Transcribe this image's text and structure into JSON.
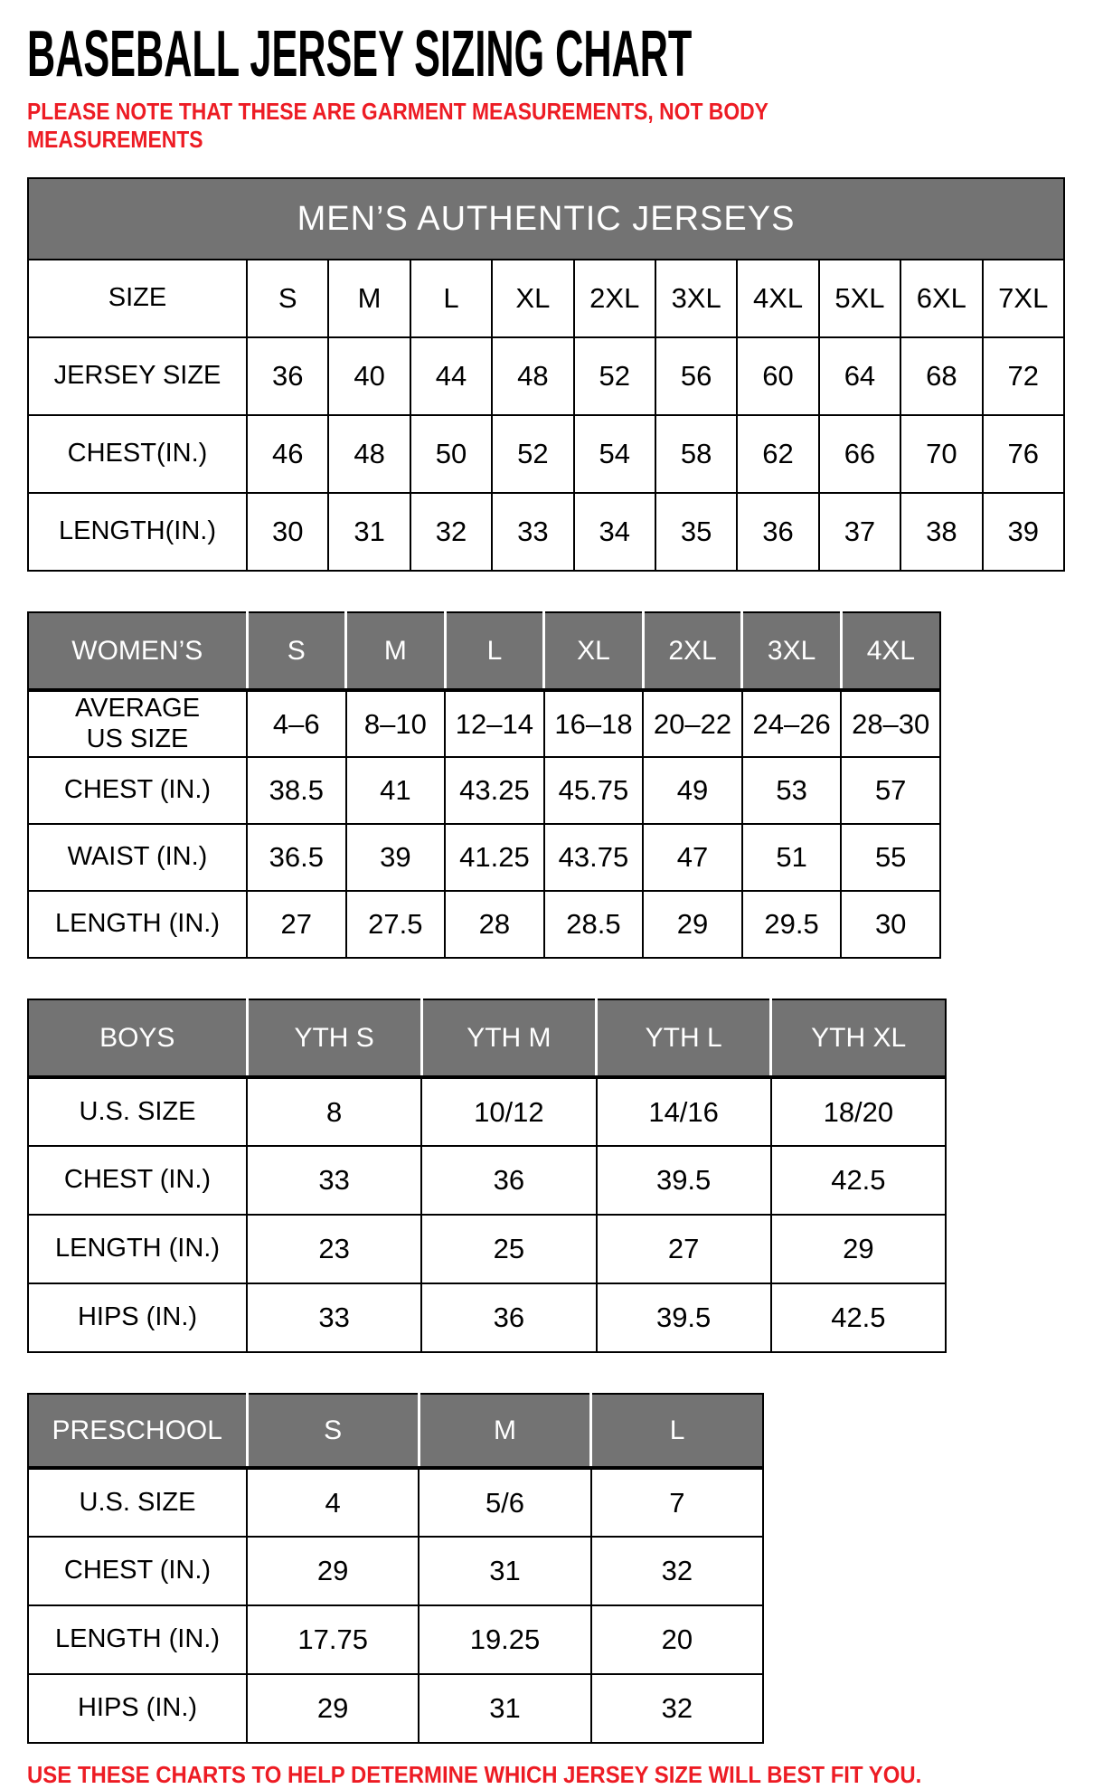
{
  "title": "BASEBALL JERSEY SIZING CHART",
  "note_lines": [
    "PLEASE NOTE THAT THESE ARE GARMENT MEASUREMENTS, NOT BODY",
    "MEASUREMENTS"
  ],
  "footer": "USE THESE CHARTS TO HELP DETERMINE WHICH JERSEY SIZE WILL BEST FIT YOU.",
  "colors": {
    "note_red": "#ed1c24",
    "header_gray": "#737373",
    "header_text": "#ffffff",
    "grid_black": "#000000"
  },
  "tables": [
    {
      "name": "mens-authentic-jerseys",
      "banner": "MEN’S AUTHENTIC JERSEYS",
      "rows": [
        {
          "label": "SIZE",
          "values": [
            "S",
            "M",
            "L",
            "XL",
            "2XL",
            "3XL",
            "4XL",
            "5XL",
            "6XL",
            "7XL"
          ]
        },
        {
          "label": "JERSEY SIZE",
          "values": [
            "36",
            "40",
            "44",
            "48",
            "52",
            "56",
            "60",
            "64",
            "68",
            "72"
          ]
        },
        {
          "label": "CHEST(IN.)",
          "values": [
            "46",
            "48",
            "50",
            "52",
            "54",
            "58",
            "62",
            "66",
            "70",
            "76"
          ]
        },
        {
          "label": "LENGTH(IN.)",
          "values": [
            "30",
            "31",
            "32",
            "33",
            "34",
            "35",
            "36",
            "37",
            "38",
            "39"
          ]
        }
      ]
    },
    {
      "name": "womens",
      "header_row": {
        "label": "WOMEN’S",
        "values": [
          "S",
          "M",
          "L",
          "XL",
          "2XL",
          "3XL",
          "4XL"
        ]
      },
      "rows": [
        {
          "label": "AVERAGE\nUS SIZE",
          "values": [
            "4–6",
            "8–10",
            "12–14",
            "16–18",
            "20–22",
            "24–26",
            "28–30"
          ]
        },
        {
          "label": "CHEST (IN.)",
          "values": [
            "38.5",
            "41",
            "43.25",
            "45.75",
            "49",
            "53",
            "57"
          ]
        },
        {
          "label": "WAIST (IN.)",
          "values": [
            "36.5",
            "39",
            "41.25",
            "43.75",
            "47",
            "51",
            "55"
          ]
        },
        {
          "label": "LENGTH (IN.)",
          "values": [
            "27",
            "27.5",
            "28",
            "28.5",
            "29",
            "29.5",
            "30"
          ]
        }
      ]
    },
    {
      "name": "boys",
      "header_row": {
        "label": "BOYS",
        "values": [
          "YTH S",
          "YTH M",
          "YTH L",
          "YTH XL"
        ]
      },
      "rows": [
        {
          "label": "U.S. SIZE",
          "values": [
            "8",
            "10/12",
            "14/16",
            "18/20"
          ]
        },
        {
          "label": "CHEST (IN.)",
          "values": [
            "33",
            "36",
            "39.5",
            "42.5"
          ]
        },
        {
          "label": "LENGTH (IN.)",
          "values": [
            "23",
            "25",
            "27",
            "29"
          ]
        },
        {
          "label": "HIPS (IN.)",
          "values": [
            "33",
            "36",
            "39.5",
            "42.5"
          ]
        }
      ]
    },
    {
      "name": "preschool",
      "header_row": {
        "label": "PRESCHOOL",
        "values": [
          "S",
          "M",
          "L"
        ]
      },
      "rows": [
        {
          "label": "U.S. SIZE",
          "values": [
            "4",
            "5/6",
            "7"
          ]
        },
        {
          "label": "CHEST (IN.)",
          "values": [
            "29",
            "31",
            "32"
          ]
        },
        {
          "label": "LENGTH (IN.)",
          "values": [
            "17.75",
            "19.25",
            "20"
          ]
        },
        {
          "label": "HIPS (IN.)",
          "values": [
            "29",
            "31",
            "32"
          ]
        }
      ]
    }
  ]
}
